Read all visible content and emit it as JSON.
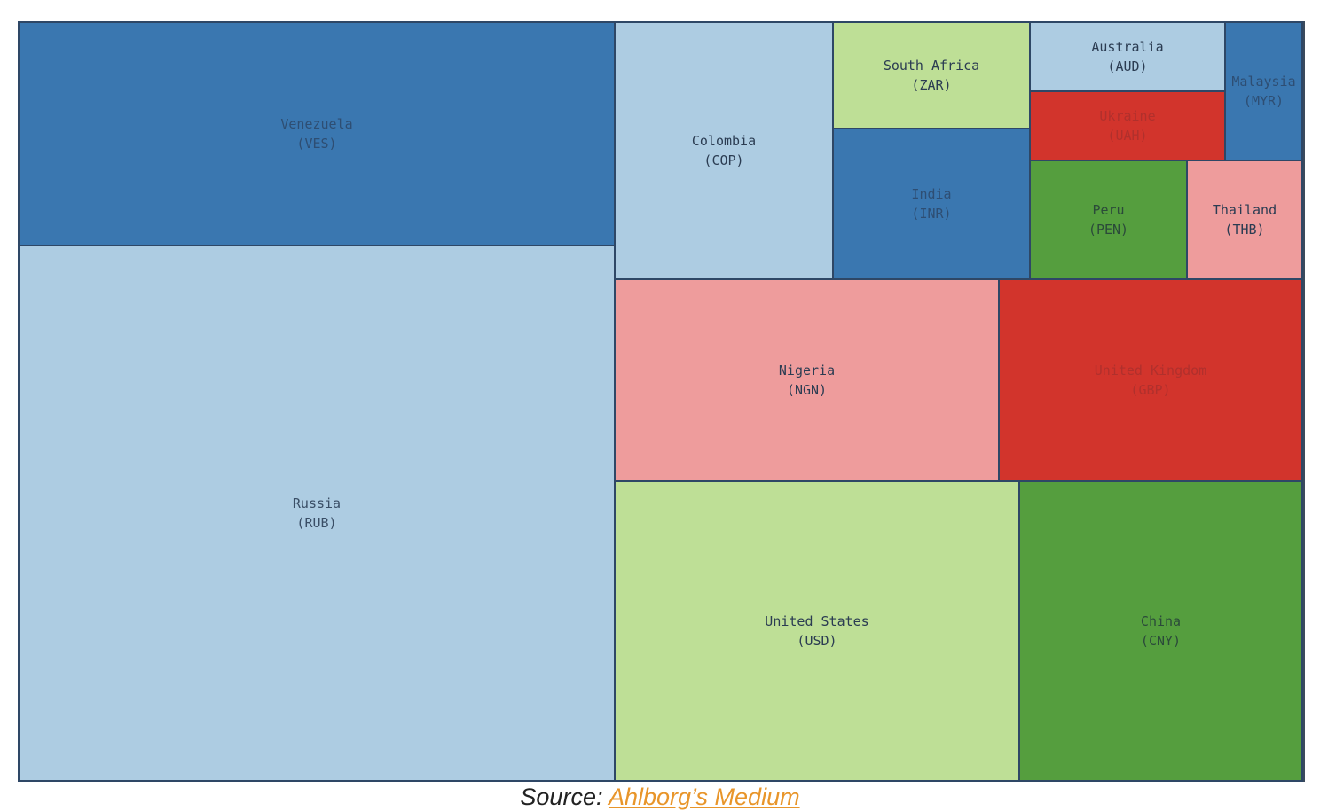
{
  "chart_data": {
    "type": "treemap",
    "title": "",
    "tiles": [
      {
        "name": "Venezuela",
        "code": "(VES)",
        "color": "#3a77b0",
        "text_color": "#2e4e73"
      },
      {
        "name": "Russia",
        "code": "(RUB)",
        "color": "#adcce2",
        "text_color": "#3a4e66"
      },
      {
        "name": "Colombia",
        "code": "(COP)",
        "color": "#adcce2",
        "text_color": "#2b3c52"
      },
      {
        "name": "South Africa",
        "code": "(ZAR)",
        "color": "#bedf96",
        "text_color": "#2b3c52"
      },
      {
        "name": "Australia",
        "code": "(AUD)",
        "color": "#adcce2",
        "text_color": "#2b3c52"
      },
      {
        "name": "Malaysia",
        "code": "(MYR)",
        "color": "#3a77b0",
        "text_color": "#2e4e73"
      },
      {
        "name": "Ukraine",
        "code": "(UAH)",
        "color": "#d2342c",
        "text_color": "#b0302c"
      },
      {
        "name": "India",
        "code": "(INR)",
        "color": "#3a77b0",
        "text_color": "#2e4e73"
      },
      {
        "name": "Peru",
        "code": "(PEN)",
        "color": "#559e3e",
        "text_color": "#2b4a3a"
      },
      {
        "name": "Thailand",
        "code": "(THB)",
        "color": "#ee9c9c",
        "text_color": "#2b3c52"
      },
      {
        "name": "Nigeria",
        "code": "(NGN)",
        "color": "#ee9c9c",
        "text_color": "#2b3c52"
      },
      {
        "name": "United Kingdom",
        "code": "(GBP)",
        "color": "#d2342c",
        "text_color": "#b0302c"
      },
      {
        "name": "United States",
        "code": "(USD)",
        "color": "#bedf96",
        "text_color": "#2b3c52"
      },
      {
        "name": "China",
        "code": "(CNY)",
        "color": "#559e3e",
        "text_color": "#2b4a3a"
      }
    ]
  },
  "caption": {
    "prefix": "Source: ",
    "link_text": "Ahlborg’s Medium",
    "link_color": "#e8952a"
  }
}
